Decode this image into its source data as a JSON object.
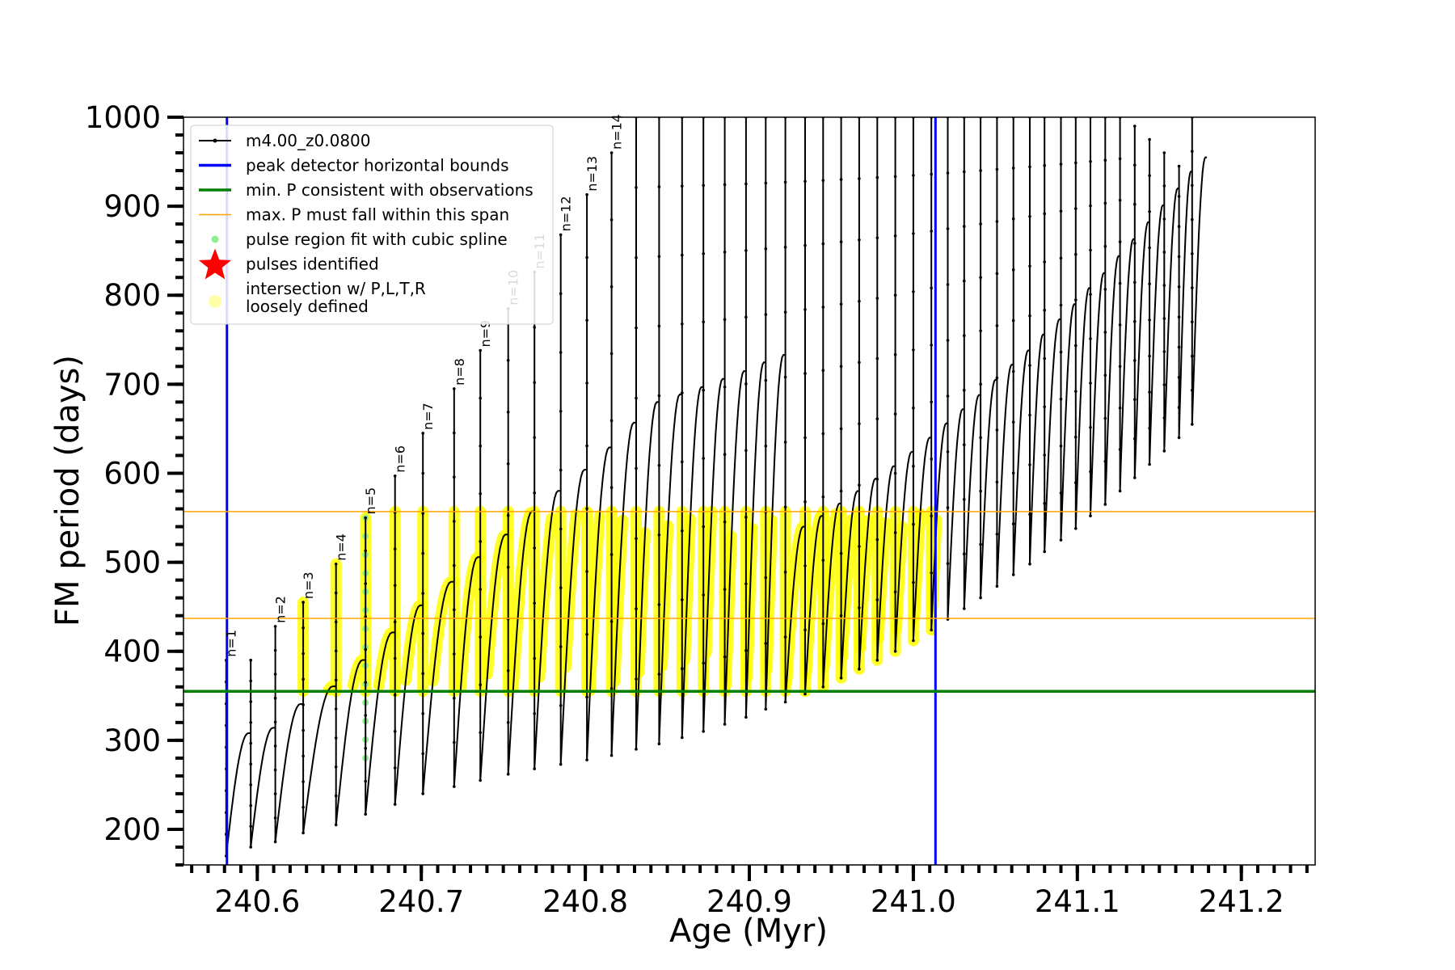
{
  "chart_data": {
    "type": "line",
    "xlabel": "Age (Myr)",
    "ylabel": "FM period (days)",
    "xlim": [
      240.555,
      241.245
    ],
    "ylim": [
      160,
      1000
    ],
    "xticks": [
      240.6,
      240.7,
      240.8,
      240.9,
      241.0,
      241.1,
      241.2
    ],
    "xtick_labels": [
      "240.6",
      "240.7",
      "240.8",
      "240.9",
      "241.0",
      "241.1",
      "241.2"
    ],
    "yticks": [
      200,
      300,
      400,
      500,
      600,
      700,
      800,
      900,
      1000
    ],
    "ytick_labels": [
      "200",
      "300",
      "400",
      "500",
      "600",
      "700",
      "800",
      "900",
      "1000"
    ],
    "x_minor_step": 0.01,
    "y_minor_step": 20,
    "grid": false,
    "legend_placement": "top-left",
    "legend": [
      {
        "label": "m4.00_z0.0800",
        "marker": "line-with-dots",
        "color": "#000000"
      },
      {
        "label": "peak detector horizontal bounds",
        "marker": "line",
        "color": "#0000ff"
      },
      {
        "label": "min. P consistent with observations",
        "marker": "line",
        "color": "#008000"
      },
      {
        "label": "max. P must fall within this span",
        "marker": "thin-line",
        "color": "#ffa500"
      },
      {
        "label": "pulse region fit with cubic spline",
        "marker": "dot",
        "color": "#90ee90"
      },
      {
        "label": "pulses identified",
        "marker": "star",
        "color": "#ff0000"
      },
      {
        "label": "intersection w/ P,L,T,R\nloosely defined",
        "marker": "big-dot",
        "color": "#ffffaa"
      }
    ],
    "reference_lines": {
      "vertical_blue": [
        240.5815,
        241.0135
      ],
      "horizontal_green": 355,
      "horizontal_orange": [
        437,
        557
      ]
    },
    "pulses": [
      {
        "x": 240.581,
        "min": 170,
        "max": 390
      },
      {
        "x": 240.596,
        "min": 180,
        "max": 390
      },
      {
        "x": 240.611,
        "min": 186,
        "max": 428
      },
      {
        "x": 240.628,
        "min": 196,
        "max": 455
      },
      {
        "x": 240.648,
        "min": 205,
        "max": 498
      },
      {
        "x": 240.666,
        "min": 217,
        "max": 550
      },
      {
        "x": 240.684,
        "min": 228,
        "max": 597
      },
      {
        "x": 240.701,
        "min": 240,
        "max": 645
      },
      {
        "x": 240.72,
        "min": 248,
        "max": 695
      },
      {
        "x": 240.736,
        "min": 255,
        "max": 738
      },
      {
        "x": 240.753,
        "min": 262,
        "max": 785
      },
      {
        "x": 240.769,
        "min": 268,
        "max": 826
      },
      {
        "x": 240.785,
        "min": 273,
        "max": 868
      },
      {
        "x": 240.801,
        "min": 278,
        "max": 913
      },
      {
        "x": 240.816,
        "min": 283,
        "max": 960
      },
      {
        "x": 240.831,
        "min": 290,
        "max": 1000
      },
      {
        "x": 240.845,
        "min": 296,
        "max": 1000
      },
      {
        "x": 240.859,
        "min": 303,
        "max": 1000
      },
      {
        "x": 240.872,
        "min": 310,
        "max": 1000
      },
      {
        "x": 240.885,
        "min": 318,
        "max": 1000
      },
      {
        "x": 240.898,
        "min": 326,
        "max": 1000
      },
      {
        "x": 240.91,
        "min": 335,
        "max": 1000
      },
      {
        "x": 240.922,
        "min": 343,
        "max": 1000
      },
      {
        "x": 240.934,
        "min": 352,
        "max": 1000
      },
      {
        "x": 240.945,
        "min": 360,
        "max": 1000
      },
      {
        "x": 240.956,
        "min": 370,
        "max": 1000
      },
      {
        "x": 240.967,
        "min": 380,
        "max": 1000
      },
      {
        "x": 240.978,
        "min": 390,
        "max": 1000
      },
      {
        "x": 240.989,
        "min": 400,
        "max": 1000
      },
      {
        "x": 241.0,
        "min": 412,
        "max": 1000
      },
      {
        "x": 241.011,
        "min": 424,
        "max": 1000
      },
      {
        "x": 241.021,
        "min": 436,
        "max": 1000
      },
      {
        "x": 241.031,
        "min": 448,
        "max": 1000
      },
      {
        "x": 241.041,
        "min": 460,
        "max": 1000
      },
      {
        "x": 241.051,
        "min": 473,
        "max": 1000
      },
      {
        "x": 241.061,
        "min": 486,
        "max": 1000
      },
      {
        "x": 241.071,
        "min": 498,
        "max": 1000
      },
      {
        "x": 241.08,
        "min": 512,
        "max": 1000
      },
      {
        "x": 241.09,
        "min": 525,
        "max": 1000
      },
      {
        "x": 241.099,
        "min": 538,
        "max": 1000
      },
      {
        "x": 241.108,
        "min": 552,
        "max": 1000
      },
      {
        "x": 241.117,
        "min": 565,
        "max": 1000
      },
      {
        "x": 241.126,
        "min": 580,
        "max": 1000
      },
      {
        "x": 241.135,
        "min": 595,
        "max": 990
      },
      {
        "x": 241.144,
        "min": 610,
        "max": 975
      },
      {
        "x": 241.153,
        "min": 625,
        "max": 960
      },
      {
        "x": 241.162,
        "min": 640,
        "max": 945
      },
      {
        "x": 241.17,
        "min": 655,
        "max": 1000
      }
    ],
    "pulse_labels": [
      "n=1",
      "n=2",
      "n=3",
      "n=4",
      "n=5",
      "n=6",
      "n=7",
      "n=8",
      "n=9",
      "n=10",
      "n=11",
      "n=12",
      "n=13",
      "n=14"
    ],
    "pulse_label_positions": [
      {
        "x": 240.581,
        "y": 390
      },
      {
        "x": 240.611,
        "y": 428
      },
      {
        "x": 240.628,
        "y": 455
      },
      {
        "x": 240.648,
        "y": 498
      },
      {
        "x": 240.666,
        "y": 550
      },
      {
        "x": 240.684,
        "y": 597
      },
      {
        "x": 240.701,
        "y": 645
      },
      {
        "x": 240.72,
        "y": 695
      },
      {
        "x": 240.736,
        "y": 738
      },
      {
        "x": 240.753,
        "y": 785
      },
      {
        "x": 240.769,
        "y": 826
      },
      {
        "x": 240.785,
        "y": 868
      },
      {
        "x": 240.801,
        "y": 913
      },
      {
        "x": 240.816,
        "y": 960
      }
    ]
  }
}
